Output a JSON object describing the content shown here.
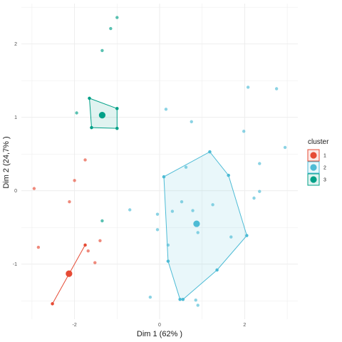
{
  "chart_data": {
    "type": "scatter",
    "subtype": "cluster-plot",
    "title": "",
    "xlabel": "Dim 1 (62% )",
    "ylabel": "Dim 2 (24,7% )",
    "xlim": [
      -3.25,
      3.25
    ],
    "ylim": [
      -1.75,
      2.55
    ],
    "x_ticks": [
      -2,
      0,
      2
    ],
    "y_ticks": [
      -1,
      0,
      1,
      2
    ],
    "grid": true,
    "legend": {
      "title": "cluster",
      "position": "right",
      "entries": [
        "1",
        "2",
        "3"
      ]
    },
    "series": [
      {
        "name": "1",
        "color": "#E64B35",
        "points": [
          {
            "x": -2.95,
            "y": 0.03
          },
          {
            "x": -2.85,
            "y": -0.77
          },
          {
            "x": -2.52,
            "y": -1.54
          },
          {
            "x": -2.12,
            "y": -0.15
          },
          {
            "x": -2.0,
            "y": 0.14
          },
          {
            "x": -1.75,
            "y": 0.42
          },
          {
            "x": -1.75,
            "y": -0.74
          },
          {
            "x": -1.68,
            "y": -0.82
          },
          {
            "x": -1.52,
            "y": -0.98
          },
          {
            "x": -1.4,
            "y": -0.68
          }
        ],
        "centroid": {
          "x": -2.13,
          "y": -1.13
        },
        "hull": [
          {
            "x": -2.52,
            "y": -1.54
          },
          {
            "x": -1.75,
            "y": -0.74
          }
        ]
      },
      {
        "name": "2",
        "color": "#4DBBD5",
        "points": [
          {
            "x": -0.7,
            "y": -0.26
          },
          {
            "x": -0.22,
            "y": -1.45
          },
          {
            "x": -0.05,
            "y": -0.32
          },
          {
            "x": -0.05,
            "y": -0.53
          },
          {
            "x": 0.1,
            "y": 0.19
          },
          {
            "x": 0.15,
            "y": 1.11
          },
          {
            "x": 0.2,
            "y": -0.74
          },
          {
            "x": 0.2,
            "y": -0.96
          },
          {
            "x": 0.3,
            "y": -0.28
          },
          {
            "x": 0.48,
            "y": -1.48
          },
          {
            "x": 0.52,
            "y": -0.15
          },
          {
            "x": 0.55,
            "y": -1.48
          },
          {
            "x": 0.62,
            "y": 0.32
          },
          {
            "x": 0.75,
            "y": 0.94
          },
          {
            "x": 0.78,
            "y": -0.27
          },
          {
            "x": 0.85,
            "y": -1.49
          },
          {
            "x": 0.9,
            "y": -1.56
          },
          {
            "x": 0.9,
            "y": -0.57
          },
          {
            "x": 1.18,
            "y": 0.53
          },
          {
            "x": 1.25,
            "y": -0.19
          },
          {
            "x": 1.35,
            "y": -1.08
          },
          {
            "x": 1.62,
            "y": 0.21
          },
          {
            "x": 1.68,
            "y": -0.63
          },
          {
            "x": 1.98,
            "y": 0.81
          },
          {
            "x": 2.05,
            "y": -0.61
          },
          {
            "x": 2.08,
            "y": 1.41
          },
          {
            "x": 2.22,
            "y": -0.1
          },
          {
            "x": 2.35,
            "y": 0.37
          },
          {
            "x": 2.35,
            "y": -0.01
          },
          {
            "x": 2.75,
            "y": 1.39
          },
          {
            "x": 2.95,
            "y": 0.59
          }
        ],
        "centroid": {
          "x": 0.87,
          "y": -0.45
        },
        "hull": [
          {
            "x": 0.1,
            "y": 0.19
          },
          {
            "x": 1.18,
            "y": 0.53
          },
          {
            "x": 1.62,
            "y": 0.21
          },
          {
            "x": 2.05,
            "y": -0.61
          },
          {
            "x": 1.35,
            "y": -1.08
          },
          {
            "x": 0.55,
            "y": -1.48
          },
          {
            "x": 0.48,
            "y": -1.48
          },
          {
            "x": 0.2,
            "y": -0.96
          }
        ]
      },
      {
        "name": "3",
        "color": "#00A087",
        "points": [
          {
            "x": -1.95,
            "y": 1.06
          },
          {
            "x": -1.65,
            "y": 1.26
          },
          {
            "x": -1.6,
            "y": 0.86
          },
          {
            "x": -1.35,
            "y": -0.41
          },
          {
            "x": -1.35,
            "y": 1.91
          },
          {
            "x": -1.15,
            "y": 2.21
          },
          {
            "x": -1.0,
            "y": 2.36
          },
          {
            "x": -1.0,
            "y": 1.12
          },
          {
            "x": -1.0,
            "y": 0.85
          }
        ],
        "centroid": {
          "x": -1.35,
          "y": 1.03
        },
        "hull": [
          {
            "x": -1.65,
            "y": 1.26
          },
          {
            "x": -1.0,
            "y": 1.12
          },
          {
            "x": -1.0,
            "y": 0.85
          },
          {
            "x": -1.6,
            "y": 0.86
          }
        ]
      }
    ]
  }
}
